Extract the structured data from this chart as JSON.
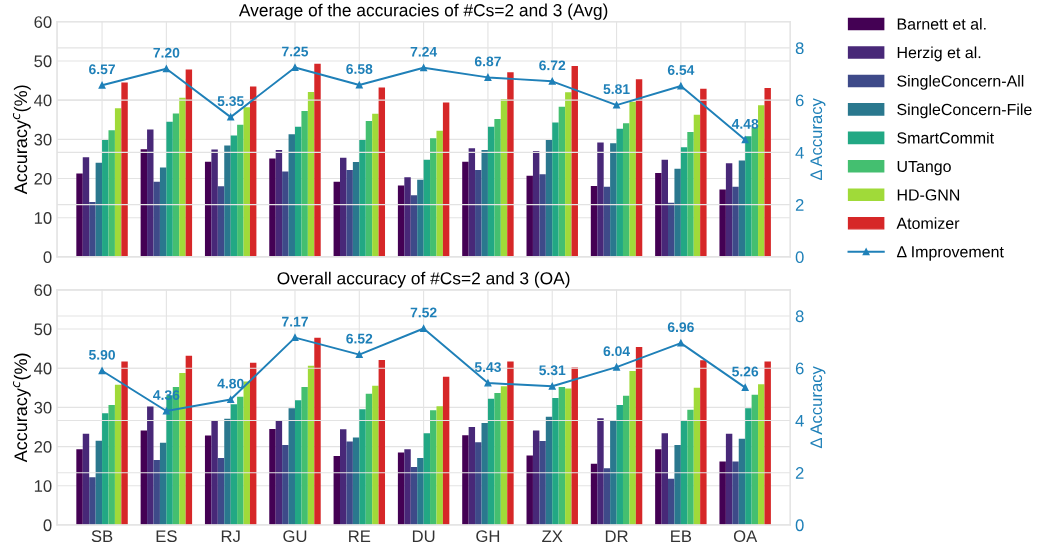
{
  "chart_data": [
    {
      "type": "bar",
      "title": "Average of the accuracies of #Cs=2 and 3 (Avg)",
      "ylabel": "Accuracy$^{c}$(%)",
      "y2label": "Δ Accuracy",
      "categories": [
        null,
        null,
        null,
        null,
        null,
        null,
        null,
        null,
        null,
        null,
        null
      ],
      "ylim": [
        0,
        60
      ],
      "yticks": [
        0,
        10,
        20,
        30,
        40,
        50,
        60
      ],
      "y2lim": [
        0,
        9
      ],
      "y2ticks": [
        0,
        2,
        4,
        6,
        8
      ],
      "grid": true,
      "legend": "right",
      "tick_labels": "y",
      "series": [
        {
          "name": "Barnett et al.",
          "color": "#440154",
          "values": [
            21.3,
            27.5,
            24.3,
            25.1,
            19.2,
            18.2,
            24.3,
            20.7,
            18.1,
            21.4,
            17.2
          ]
        },
        {
          "name": "Herzig et al.",
          "color": "#482878",
          "values": [
            25.4,
            32.5,
            27.4,
            27.3,
            25.3,
            20.3,
            27.7,
            27.0,
            29.2,
            24.8,
            23.9
          ]
        },
        {
          "name": "SingleConcern-All",
          "color": "#3e4a89",
          "values": [
            14.0,
            19.2,
            18.0,
            21.8,
            22.2,
            15.7,
            22.2,
            21.1,
            17.9,
            13.8,
            17.9
          ]
        },
        {
          "name": "SingleConcern-File",
          "color": "#2a788e",
          "values": [
            24.0,
            22.8,
            28.4,
            31.3,
            24.2,
            19.7,
            27.3,
            29.8,
            29.0,
            22.5,
            24.6
          ]
        },
        {
          "name": "SmartCommit",
          "color": "#22a884",
          "values": [
            29.8,
            34.5,
            31.0,
            33.2,
            29.8,
            24.8,
            33.2,
            34.3,
            32.7,
            28.0,
            30.8
          ]
        },
        {
          "name": "UTango",
          "color": "#44bf70",
          "values": [
            32.3,
            36.6,
            33.7,
            37.2,
            34.7,
            30.3,
            35.2,
            38.3,
            34.1,
            31.9,
            33.0
          ]
        },
        {
          "name": "HD-GNN",
          "color": "#a0da39",
          "values": [
            37.9,
            40.6,
            38.2,
            42.1,
            36.5,
            32.2,
            40.3,
            42.0,
            39.6,
            36.3,
            38.7
          ]
        },
        {
          "name": "Atomizer",
          "color": "#d62728",
          "values": [
            44.5,
            47.8,
            43.5,
            49.3,
            43.2,
            39.4,
            47.1,
            48.7,
            45.3,
            42.9,
            43.1
          ]
        },
        {
          "name": "Δ Improvement",
          "type": "line",
          "axis": "y2",
          "color": "#1f80b8",
          "marker": "triangle",
          "values": [
            6.57,
            7.2,
            5.35,
            7.25,
            6.58,
            7.24,
            6.87,
            6.72,
            5.81,
            6.54,
            4.48
          ],
          "value_labels": [
            "6.57",
            "7.20",
            "5.35",
            "7.25",
            "6.58",
            "7.24",
            "6.87",
            "6.72",
            "5.81",
            "6.54",
            "4.48"
          ]
        }
      ]
    },
    {
      "type": "bar",
      "title": "Overall accuracy of #Cs=2 and 3 (OA)",
      "ylabel": "Accuracy$^{c}$(%)",
      "y2label": "Δ Accuracy",
      "categories": [
        "SB",
        "ES",
        "RJ",
        "GU",
        "RE",
        "DU",
        "GH",
        "ZX",
        "DR",
        "EB",
        "OA"
      ],
      "ylim": [
        0,
        60
      ],
      "yticks": [
        0,
        10,
        20,
        30,
        40,
        50,
        60
      ],
      "y2lim": [
        0,
        9
      ],
      "y2ticks": [
        0,
        2,
        4,
        6,
        8
      ],
      "grid": true,
      "series": [
        {
          "color": "#440154",
          "values": [
            19.3,
            24.1,
            22.8,
            24.5,
            17.6,
            18.5,
            22.9,
            17.7,
            15.6,
            19.3,
            16.2
          ]
        },
        {
          "color": "#482878",
          "values": [
            23.3,
            30.2,
            26.8,
            26.6,
            24.4,
            19.3,
            25.0,
            24.1,
            27.2,
            23.4,
            23.3
          ]
        },
        {
          "color": "#3e4a89",
          "values": [
            12.2,
            16.6,
            17.1,
            20.4,
            21.3,
            14.8,
            21.1,
            21.4,
            14.5,
            11.8,
            16.2
          ]
        },
        {
          "color": "#2a788e",
          "values": [
            21.5,
            21.0,
            27.1,
            29.8,
            22.3,
            17.1,
            26.0,
            27.6,
            26.6,
            20.4,
            22.0
          ]
        },
        {
          "color": "#22a884",
          "values": [
            28.5,
            33.1,
            30.8,
            31.8,
            29.5,
            23.4,
            32.2,
            32.4,
            30.6,
            26.5,
            29.8
          ]
        },
        {
          "color": "#44bf70",
          "values": [
            30.6,
            35.2,
            32.7,
            35.2,
            33.5,
            29.3,
            33.7,
            35.2,
            33.0,
            29.4,
            33.2
          ]
        },
        {
          "color": "#a0da39",
          "values": [
            35.8,
            38.8,
            36.6,
            40.6,
            35.5,
            30.3,
            35.4,
            34.8,
            39.3,
            35.0,
            35.9
          ]
        },
        {
          "color": "#d62728",
          "values": [
            41.7,
            43.2,
            41.4,
            47.8,
            42.1,
            37.8,
            41.7,
            40.2,
            45.4,
            42.0,
            41.7
          ]
        },
        {
          "type": "line",
          "axis": "y2",
          "color": "#1f80b8",
          "marker": "triangle",
          "values": [
            5.9,
            4.36,
            4.8,
            7.17,
            6.52,
            7.52,
            5.43,
            5.31,
            6.04,
            6.96,
            5.26
          ],
          "value_labels": [
            "5.90",
            "4.36",
            "4.80",
            "7.17",
            "6.52",
            "7.52",
            "5.43",
            "5.31",
            "6.04",
            "6.96",
            "5.26"
          ]
        }
      ]
    }
  ]
}
